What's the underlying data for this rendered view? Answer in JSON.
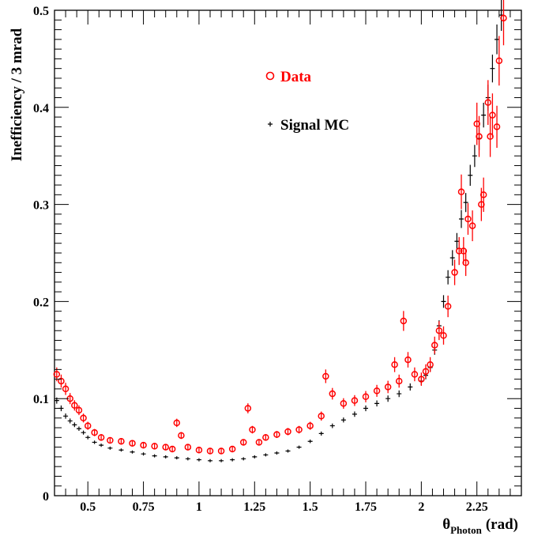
{
  "chart_data": {
    "type": "scatter",
    "title": "",
    "ylabel": "Inefficiency / 3 mrad",
    "xlabel": {
      "symbol": "θ",
      "subscript": "Photon",
      "unit": "(rad)"
    },
    "xlim": [
      0.35,
      2.45
    ],
    "ylim": [
      0,
      0.5
    ],
    "x_ticks": [
      0.5,
      0.75,
      1,
      1.25,
      1.5,
      1.75,
      2,
      2.25
    ],
    "x_tick_labels": [
      "0.5",
      "0.75",
      "1",
      "1.25",
      "1.5",
      "1.75",
      "2",
      "2.25"
    ],
    "y_ticks": [
      0.1,
      0.2,
      0.3,
      0.4,
      0.5
    ],
    "y_tick_labels": [
      "0.1",
      "0.2",
      "0.3",
      "0.4",
      "0.5"
    ],
    "grid": false,
    "legend": {
      "placement": "top-center"
    },
    "series": [
      {
        "name": "Data",
        "marker": "open-circle",
        "color": "#ff0000",
        "points": [
          [
            0.36,
            0.125
          ],
          [
            0.38,
            0.118
          ],
          [
            0.4,
            0.11
          ],
          [
            0.42,
            0.1
          ],
          [
            0.44,
            0.093
          ],
          [
            0.46,
            0.088
          ],
          [
            0.48,
            0.08
          ],
          [
            0.5,
            0.072
          ],
          [
            0.53,
            0.065
          ],
          [
            0.56,
            0.06
          ],
          [
            0.6,
            0.057
          ],
          [
            0.65,
            0.056
          ],
          [
            0.7,
            0.054
          ],
          [
            0.75,
            0.052
          ],
          [
            0.8,
            0.051
          ],
          [
            0.85,
            0.05
          ],
          [
            0.88,
            0.048
          ],
          [
            0.9,
            0.075
          ],
          [
            0.92,
            0.062
          ],
          [
            0.95,
            0.05
          ],
          [
            1.0,
            0.047
          ],
          [
            1.05,
            0.046
          ],
          [
            1.1,
            0.046
          ],
          [
            1.15,
            0.048
          ],
          [
            1.2,
            0.055
          ],
          [
            1.22,
            0.09
          ],
          [
            1.24,
            0.068
          ],
          [
            1.27,
            0.055
          ],
          [
            1.3,
            0.06
          ],
          [
            1.35,
            0.063
          ],
          [
            1.4,
            0.066
          ],
          [
            1.45,
            0.068
          ],
          [
            1.5,
            0.072
          ],
          [
            1.55,
            0.082
          ],
          [
            1.57,
            0.123
          ],
          [
            1.6,
            0.105
          ],
          [
            1.65,
            0.095
          ],
          [
            1.7,
            0.098
          ],
          [
            1.75,
            0.102
          ],
          [
            1.8,
            0.108
          ],
          [
            1.85,
            0.112
          ],
          [
            1.88,
            0.135
          ],
          [
            1.9,
            0.118
          ],
          [
            1.92,
            0.18
          ],
          [
            1.94,
            0.14
          ],
          [
            1.97,
            0.125
          ],
          [
            2.0,
            0.12
          ],
          [
            2.02,
            0.128
          ],
          [
            2.04,
            0.135
          ],
          [
            2.06,
            0.155
          ],
          [
            2.08,
            0.17
          ],
          [
            2.1,
            0.165
          ],
          [
            2.12,
            0.195
          ],
          [
            2.15,
            0.23
          ],
          [
            2.17,
            0.252
          ],
          [
            2.18,
            0.313
          ],
          [
            2.19,
            0.252
          ],
          [
            2.2,
            0.24
          ],
          [
            2.21,
            0.285
          ],
          [
            2.23,
            0.278
          ],
          [
            2.25,
            0.383
          ],
          [
            2.26,
            0.37
          ],
          [
            2.27,
            0.3
          ],
          [
            2.28,
            0.31
          ],
          [
            2.3,
            0.405
          ],
          [
            2.31,
            0.37
          ],
          [
            2.32,
            0.392
          ],
          [
            2.34,
            0.38
          ],
          [
            2.35,
            0.448
          ],
          [
            2.37,
            0.492
          ]
        ]
      },
      {
        "name": "Signal MC",
        "marker": "cross",
        "color": "#000000",
        "points": [
          [
            0.36,
            0.098
          ],
          [
            0.38,
            0.09
          ],
          [
            0.4,
            0.082
          ],
          [
            0.42,
            0.077
          ],
          [
            0.44,
            0.073
          ],
          [
            0.46,
            0.069
          ],
          [
            0.48,
            0.065
          ],
          [
            0.5,
            0.06
          ],
          [
            0.53,
            0.055
          ],
          [
            0.56,
            0.052
          ],
          [
            0.6,
            0.049
          ],
          [
            0.65,
            0.047
          ],
          [
            0.7,
            0.045
          ],
          [
            0.75,
            0.043
          ],
          [
            0.8,
            0.041
          ],
          [
            0.85,
            0.04
          ],
          [
            0.9,
            0.039
          ],
          [
            0.95,
            0.038
          ],
          [
            1.0,
            0.037
          ],
          [
            1.05,
            0.036
          ],
          [
            1.1,
            0.036
          ],
          [
            1.15,
            0.037
          ],
          [
            1.2,
            0.038
          ],
          [
            1.25,
            0.04
          ],
          [
            1.3,
            0.042
          ],
          [
            1.35,
            0.044
          ],
          [
            1.4,
            0.046
          ],
          [
            1.45,
            0.05
          ],
          [
            1.5,
            0.056
          ],
          [
            1.55,
            0.064
          ],
          [
            1.6,
            0.072
          ],
          [
            1.65,
            0.078
          ],
          [
            1.7,
            0.084
          ],
          [
            1.75,
            0.09
          ],
          [
            1.8,
            0.095
          ],
          [
            1.85,
            0.1
          ],
          [
            1.9,
            0.105
          ],
          [
            1.95,
            0.112
          ],
          [
            2.0,
            0.118
          ],
          [
            2.02,
            0.124
          ],
          [
            2.04,
            0.132
          ],
          [
            2.06,
            0.15
          ],
          [
            2.08,
            0.175
          ],
          [
            2.1,
            0.2
          ],
          [
            2.12,
            0.225
          ],
          [
            2.14,
            0.245
          ],
          [
            2.16,
            0.262
          ],
          [
            2.18,
            0.285
          ],
          [
            2.2,
            0.302
          ],
          [
            2.22,
            0.33
          ],
          [
            2.24,
            0.35
          ],
          [
            2.26,
            0.368
          ],
          [
            2.28,
            0.392
          ],
          [
            2.3,
            0.41
          ],
          [
            2.32,
            0.44
          ],
          [
            2.34,
            0.47
          ],
          [
            2.36,
            0.495
          ]
        ]
      }
    ]
  }
}
